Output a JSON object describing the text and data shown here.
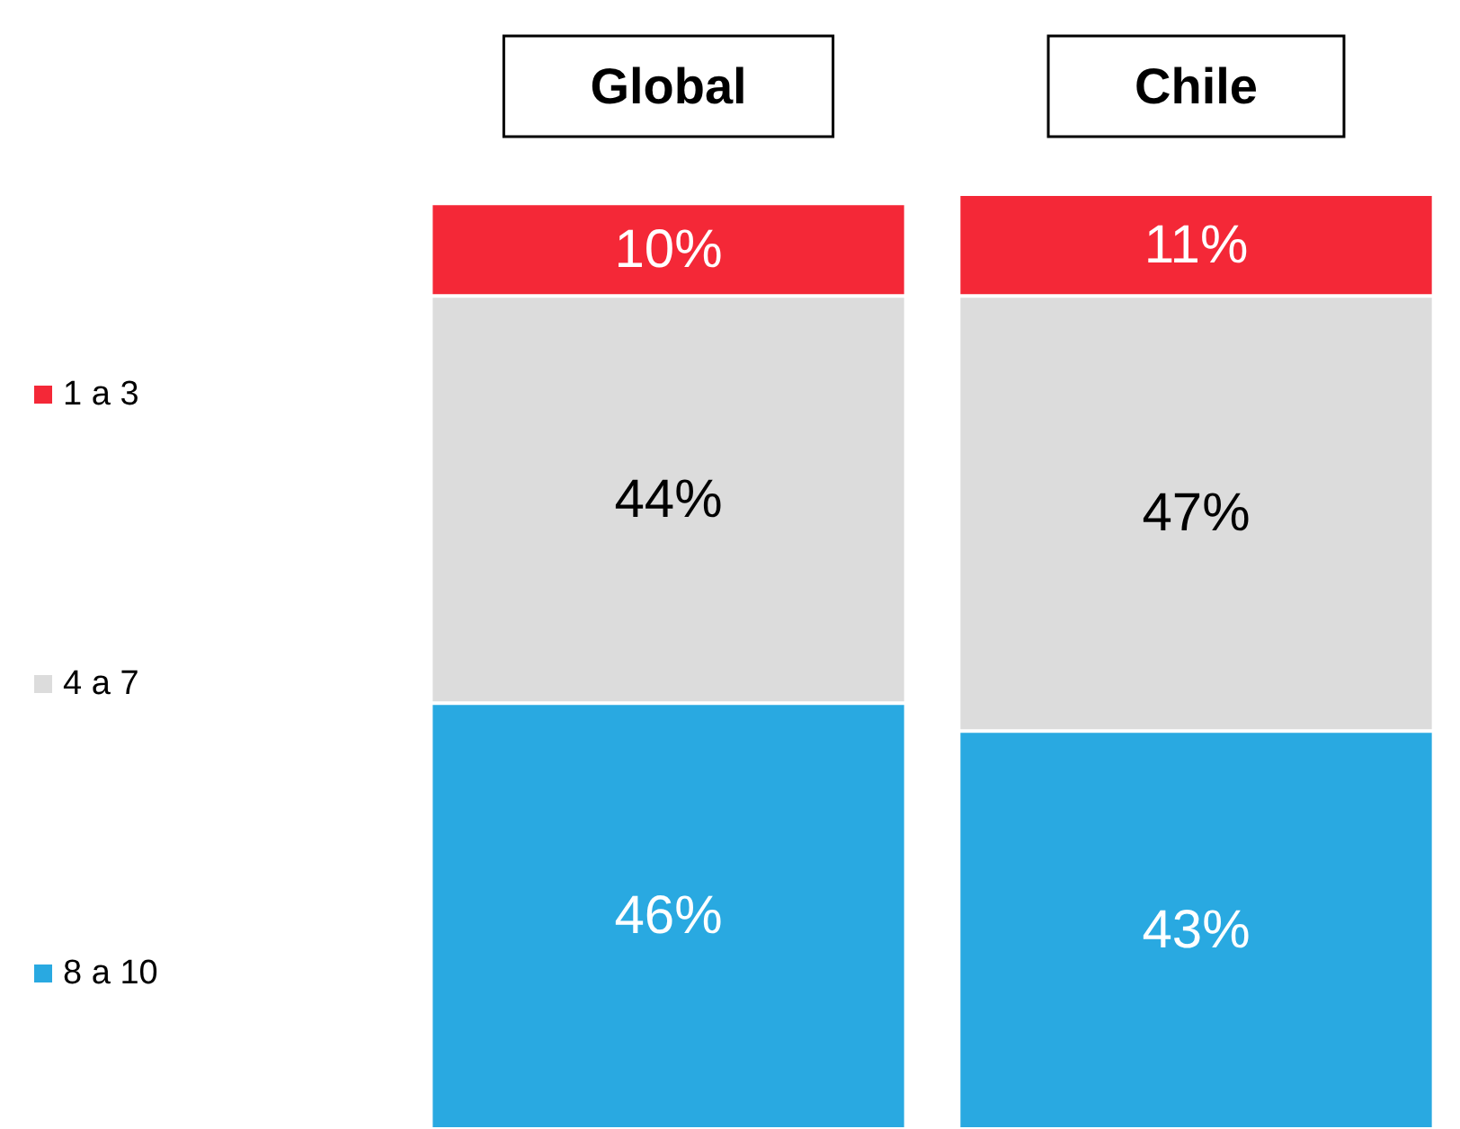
{
  "chart_data": {
    "type": "bar",
    "stacked": true,
    "categories": [
      "Global",
      "Chile"
    ],
    "series": [
      {
        "name": "8 a 10",
        "color": "#29a9e1",
        "values": [
          46,
          43
        ],
        "value_labels": [
          "46%",
          "43%"
        ]
      },
      {
        "name": "4 a 7",
        "color": "#dcdcdc",
        "values": [
          44,
          47
        ],
        "value_labels": [
          "44%",
          "47%"
        ]
      },
      {
        "name": "1 a 3",
        "color": "#f42837",
        "values": [
          10,
          11
        ],
        "value_labels": [
          "10%",
          "11%"
        ]
      }
    ],
    "ylim": [
      0,
      101
    ],
    "legend": "left"
  }
}
